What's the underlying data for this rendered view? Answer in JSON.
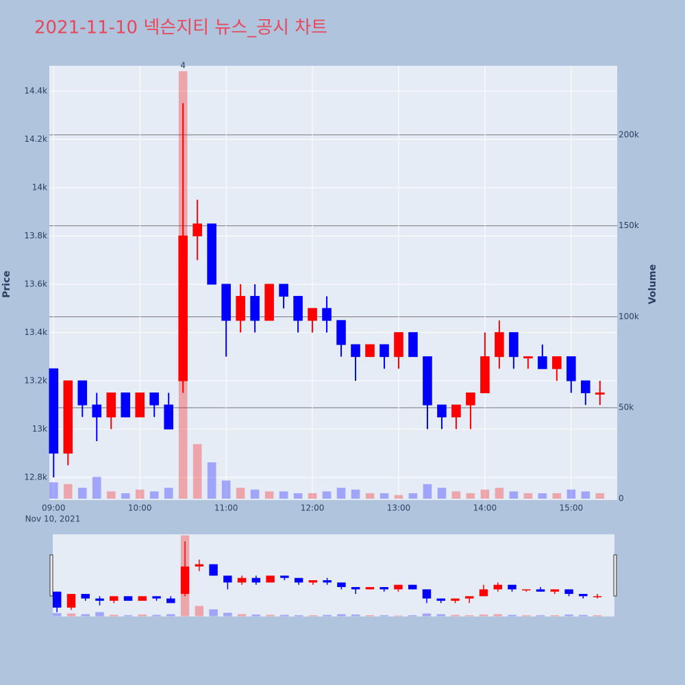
{
  "chart_data": {
    "type": "candlestick",
    "title": "2021-11-10 넥슨지티 뉴스_공시 차트",
    "x": [
      "09:00",
      "09:10",
      "09:20",
      "09:30",
      "09:40",
      "09:50",
      "10:00",
      "10:10",
      "10:20",
      "10:30",
      "10:40",
      "10:50",
      "11:00",
      "11:10",
      "11:20",
      "11:30",
      "11:40",
      "11:50",
      "12:00",
      "12:10",
      "12:20",
      "12:30",
      "12:40",
      "12:50",
      "13:00",
      "13:10",
      "13:20",
      "13:30",
      "13:40",
      "13:50",
      "14:00",
      "14:10",
      "14:20",
      "14:30",
      "14:40",
      "14:50",
      "15:00",
      "15:10",
      "15:20"
    ],
    "open": [
      13250,
      12900,
      13200,
      13100,
      13050,
      13150,
      13050,
      13150,
      13100,
      13200,
      13800,
      13850,
      13600,
      13450,
      13550,
      13450,
      13600,
      13550,
      13450,
      13500,
      13450,
      13350,
      13300,
      13350,
      13300,
      13400,
      13300,
      13100,
      13050,
      13100,
      13150,
      13300,
      13400,
      13300,
      13300,
      13250,
      13300,
      13200,
      13150
    ],
    "high": [
      13250,
      13200,
      13200,
      13150,
      13150,
      13150,
      13150,
      13150,
      13150,
      14350,
      13950,
      13850,
      13600,
      13600,
      13600,
      13600,
      13600,
      13550,
      13500,
      13550,
      13450,
      13350,
      13350,
      13350,
      13400,
      13400,
      13300,
      13100,
      13100,
      13150,
      13400,
      13450,
      13400,
      13300,
      13350,
      13300,
      13300,
      13200,
      13200
    ],
    "low": [
      12800,
      12850,
      13050,
      12950,
      13000,
      13050,
      13050,
      13050,
      13000,
      13150,
      13700,
      13600,
      13300,
      13400,
      13400,
      13450,
      13500,
      13400,
      13400,
      13400,
      13300,
      13200,
      13300,
      13250,
      13250,
      13300,
      13000,
      13000,
      13000,
      13000,
      13150,
      13250,
      13250,
      13250,
      13250,
      13200,
      13150,
      13100,
      13100
    ],
    "close": [
      12900,
      13200,
      13100,
      13050,
      13150,
      13050,
      13150,
      13100,
      13000,
      13800,
      13850,
      13600,
      13450,
      13550,
      13450,
      13600,
      13550,
      13450,
      13500,
      13450,
      13350,
      13300,
      13350,
      13300,
      13400,
      13300,
      13100,
      13050,
      13100,
      13150,
      13300,
      13400,
      13300,
      13300,
      13250,
      13300,
      13200,
      13150,
      13150
    ],
    "volume": [
      9000,
      8000,
      6000,
      12000,
      4000,
      3000,
      5000,
      4000,
      6000,
      235000,
      30000,
      20000,
      10000,
      6000,
      5000,
      4000,
      4000,
      3000,
      3000,
      4000,
      6000,
      5000,
      3000,
      3000,
      2000,
      3000,
      8000,
      6000,
      4000,
      3000,
      5000,
      6000,
      4000,
      3000,
      3000,
      3000,
      5000,
      4000,
      3000
    ],
    "increasing_color": "#ff0000",
    "decreasing_color": "#0000ff",
    "xlim": [
      "08:57",
      "15:32"
    ],
    "xticks": [
      "09:00",
      "10:00",
      "11:00",
      "12:00",
      "13:00",
      "14:00",
      "15:00"
    ],
    "x_date_label": "Nov 10, 2021",
    "ylim": [
      12706,
      14505
    ],
    "yticks": [
      {
        "value": 12800,
        "label": "12.8k"
      },
      {
        "value": 13000,
        "label": "13k"
      },
      {
        "value": 13200,
        "label": "13.2k"
      },
      {
        "value": 13400,
        "label": "13.4k"
      },
      {
        "value": 13600,
        "label": "13.6k"
      },
      {
        "value": 13800,
        "label": "13.8k"
      },
      {
        "value": 14000,
        "label": "14k"
      },
      {
        "value": 14200,
        "label": "14.2k"
      },
      {
        "value": 14400,
        "label": "14.4k"
      }
    ],
    "y_label": "Price",
    "y2lim": [
      -750,
      238000
    ],
    "y2ticks": [
      0,
      {
        "value": 50000,
        "label": "50k"
      },
      {
        "value": 100000,
        "label": "100k"
      },
      {
        "value": 150000,
        "label": "150k"
      },
      {
        "value": 200000,
        "label": "200k"
      }
    ],
    "y2_label": "Volume",
    "annotation": {
      "x": "10:30",
      "text": "4"
    }
  }
}
